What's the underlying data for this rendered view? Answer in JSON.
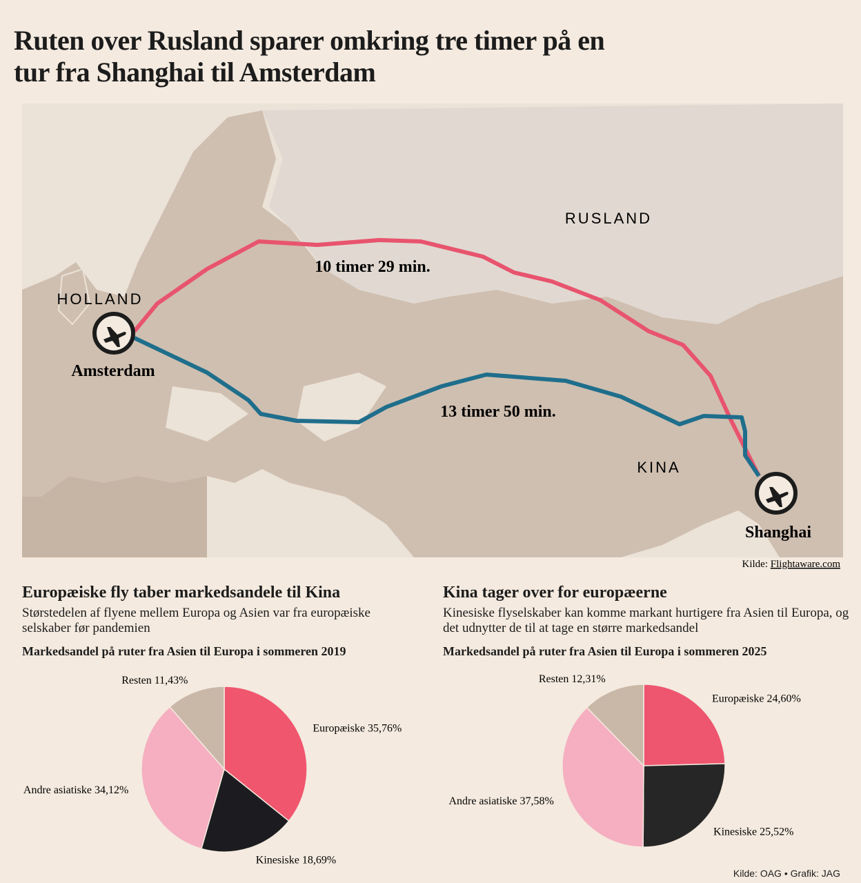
{
  "title": "Ruten over Rusland sparer omkring tre timer på en tur fra Shanghai til Amsterdam",
  "map": {
    "countries": [
      "RUSLAND",
      "HOLLAND",
      "KINA"
    ],
    "cities": [
      "Amsterdam",
      "Shanghai"
    ],
    "routes": [
      {
        "label": "10 timer 29 min.",
        "color": "#e8546e"
      },
      {
        "label": "13 timer 50 min.",
        "color": "#1f6e8c"
      }
    ],
    "source_prefix": "Kilde:",
    "source_link": "Flightaware.com"
  },
  "chart_data": [
    {
      "type": "pie",
      "title": "Europæiske fly taber markedsandele til Kina",
      "subtitle": "Størstedelen af flyene mellem Europa og Asien var fra europæiske selskaber før pandemien",
      "label": "Markedsandel på ruter fra Asien til Europa i sommeren 2019",
      "categories": [
        "Europæiske",
        "Kinesiske",
        "Andre asiatiske",
        "Resten"
      ],
      "values": [
        35.76,
        18.69,
        34.12,
        11.43
      ],
      "value_labels": [
        "35,76%",
        "18,69%",
        "34,12%",
        "11,43%"
      ],
      "colors": [
        "#f0566e",
        "#1c1c20",
        "#f5afc0",
        "#c9b8a8"
      ]
    },
    {
      "type": "pie",
      "title": "Kina tager over for europæerne",
      "subtitle": "Kinesiske flyselskaber kan komme markant hurtigere fra Asien til Europa, og det udnytter de til at tage en større markedsandel",
      "label": "Markedsandel på ruter fra Asien til Europa i sommeren 2025",
      "categories": [
        "Europæiske",
        "Kinesiske",
        "Andre asiatiske",
        "Resten"
      ],
      "values": [
        24.6,
        25.52,
        37.58,
        12.31
      ],
      "value_labels": [
        "24,60%",
        "25,52%",
        "37,58%",
        "12,31%"
      ],
      "colors": [
        "#ee5670",
        "#262626",
        "#f5afc0",
        "#c9b8a8"
      ]
    }
  ],
  "footer": {
    "source": "Kilde: OAG",
    "credit": "Grafik: JAG"
  }
}
